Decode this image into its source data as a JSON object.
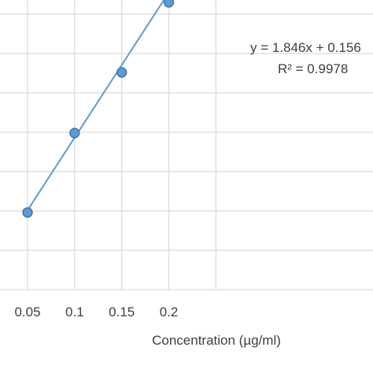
{
  "chart_data": {
    "type": "scatter",
    "title": "",
    "xlabel": "Concentration (µg/ml)",
    "ylabel": "",
    "x_ticks": [
      "0.05",
      "0.1",
      "0.15",
      "0.2"
    ],
    "series": [
      {
        "points": [
          {
            "x": 0.05,
            "y": 0.248
          },
          {
            "x": 0.1,
            "y": 0.349
          },
          {
            "x": 0.15,
            "y": 0.426
          },
          {
            "x": 0.2,
            "y": 0.515
          }
        ],
        "marker_color": "#5b9bd5",
        "trendline": {
          "slope": 1.846,
          "intercept": 0.156,
          "color": "#5b9bd5"
        }
      }
    ],
    "annotations": {
      "equation": "y = 1.846x + 0.156",
      "r_squared": "R² = 0.9978"
    },
    "grid": true,
    "xlim": [
      0,
      0.25
    ],
    "ylim": [
      0.15,
      0.65
    ]
  }
}
